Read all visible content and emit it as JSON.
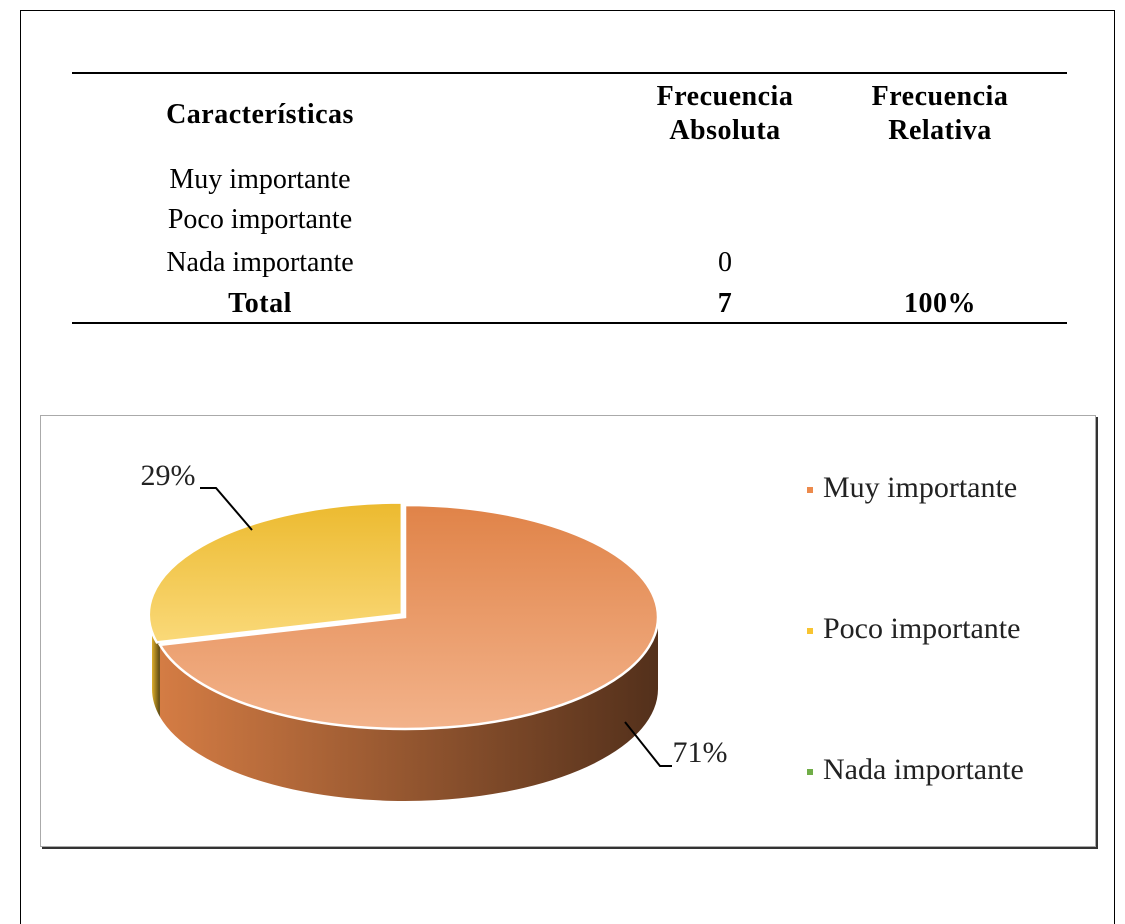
{
  "table": {
    "columns": [
      "Características",
      "Frecuencia Absoluta",
      "Frecuencia Relativa"
    ],
    "rows": [
      [
        "Muy importante",
        null,
        null
      ],
      [
        "Poco importante",
        null,
        null
      ],
      [
        "Nada importante",
        0,
        null
      ]
    ],
    "total": [
      "Total",
      7,
      "100%"
    ]
  },
  "chart_data": {
    "type": "pie",
    "categories": [
      "Muy importante",
      "Poco importante",
      "Nada importante"
    ],
    "values": [
      71,
      29,
      0
    ],
    "value_labels": [
      "71%",
      "29%",
      null
    ],
    "colors": [
      "#ec8a4c",
      "#f8c431",
      "#70ad47"
    ],
    "legend": "right"
  }
}
